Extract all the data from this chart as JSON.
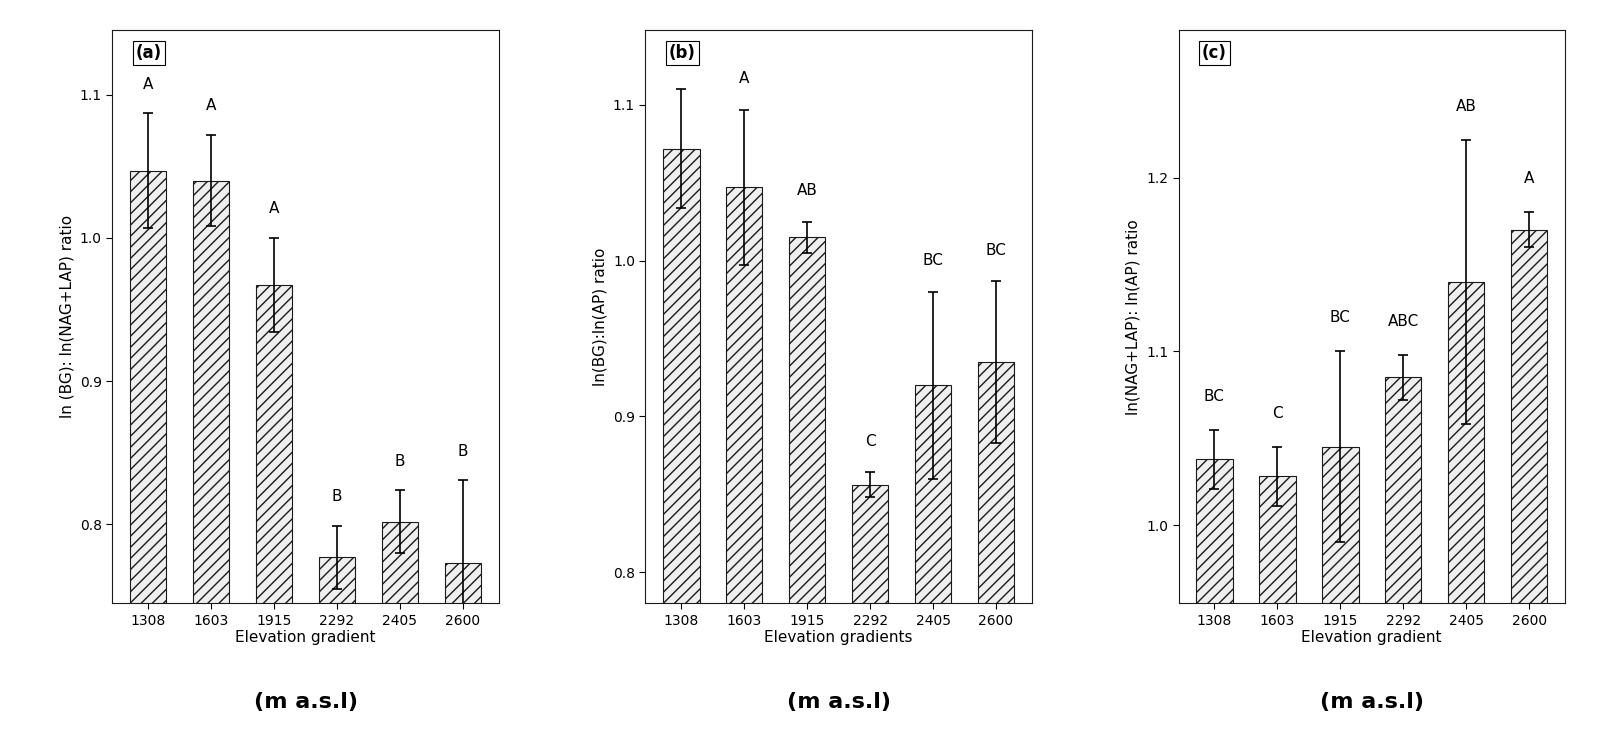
{
  "categories": [
    "1308",
    "1603",
    "1915",
    "2292",
    "2405",
    "2600"
  ],
  "panel_a": {
    "label": "(a)",
    "ylabel": "ln (BG): ln(NAG+LAP) ratio",
    "xlabel": "Elevation gradient",
    "xlabel2": "(m a.s.l)",
    "values": [
      1.047,
      1.04,
      0.967,
      0.777,
      0.802,
      0.773
    ],
    "errors": [
      0.04,
      0.032,
      0.033,
      0.022,
      0.022,
      0.058
    ],
    "sig_labels": [
      "A",
      "A",
      "A",
      "B",
      "B",
      "B"
    ],
    "ylim": [
      0.745,
      1.145
    ],
    "yticks": [
      0.8,
      0.9,
      1.0,
      1.1
    ]
  },
  "panel_b": {
    "label": "(b)",
    "ylabel": "ln(BG):ln(AP) ratio",
    "xlabel": "Elevation gradients",
    "xlabel2": "(m a.s.l)",
    "values": [
      1.072,
      1.047,
      1.015,
      0.856,
      0.92,
      0.935
    ],
    "errors": [
      0.038,
      0.05,
      0.01,
      0.008,
      0.06,
      0.052
    ],
    "sig_labels": [
      "A",
      "A",
      "AB",
      "C",
      "BC",
      "BC"
    ],
    "ylim": [
      0.78,
      1.148
    ],
    "yticks": [
      0.8,
      0.9,
      1.0,
      1.1
    ]
  },
  "panel_c": {
    "label": "(c)",
    "ylabel": "ln(NAG+LAP): ln(AP) ratio",
    "xlabel": "Elevation gradient",
    "xlabel2": "(m a.s.l)",
    "values": [
      1.038,
      1.028,
      1.045,
      1.085,
      1.14,
      1.17
    ],
    "errors": [
      0.017,
      0.017,
      0.055,
      0.013,
      0.082,
      0.01
    ],
    "sig_labels": [
      "BC",
      "C",
      "BC",
      "ABC",
      "AB",
      "A"
    ],
    "ylim": [
      0.955,
      1.285
    ],
    "yticks": [
      1.0,
      1.1,
      1.2
    ]
  },
  "bar_facecolor": "#efefef",
  "bar_edgecolor": "#1a1a1a",
  "hatch": "///",
  "sig_fontsize": 11,
  "tick_fontsize": 10,
  "ylabel_fontsize": 11,
  "xlabel_fontsize": 11,
  "xlabel2_fontsize": 16,
  "panel_label_fontsize": 12
}
